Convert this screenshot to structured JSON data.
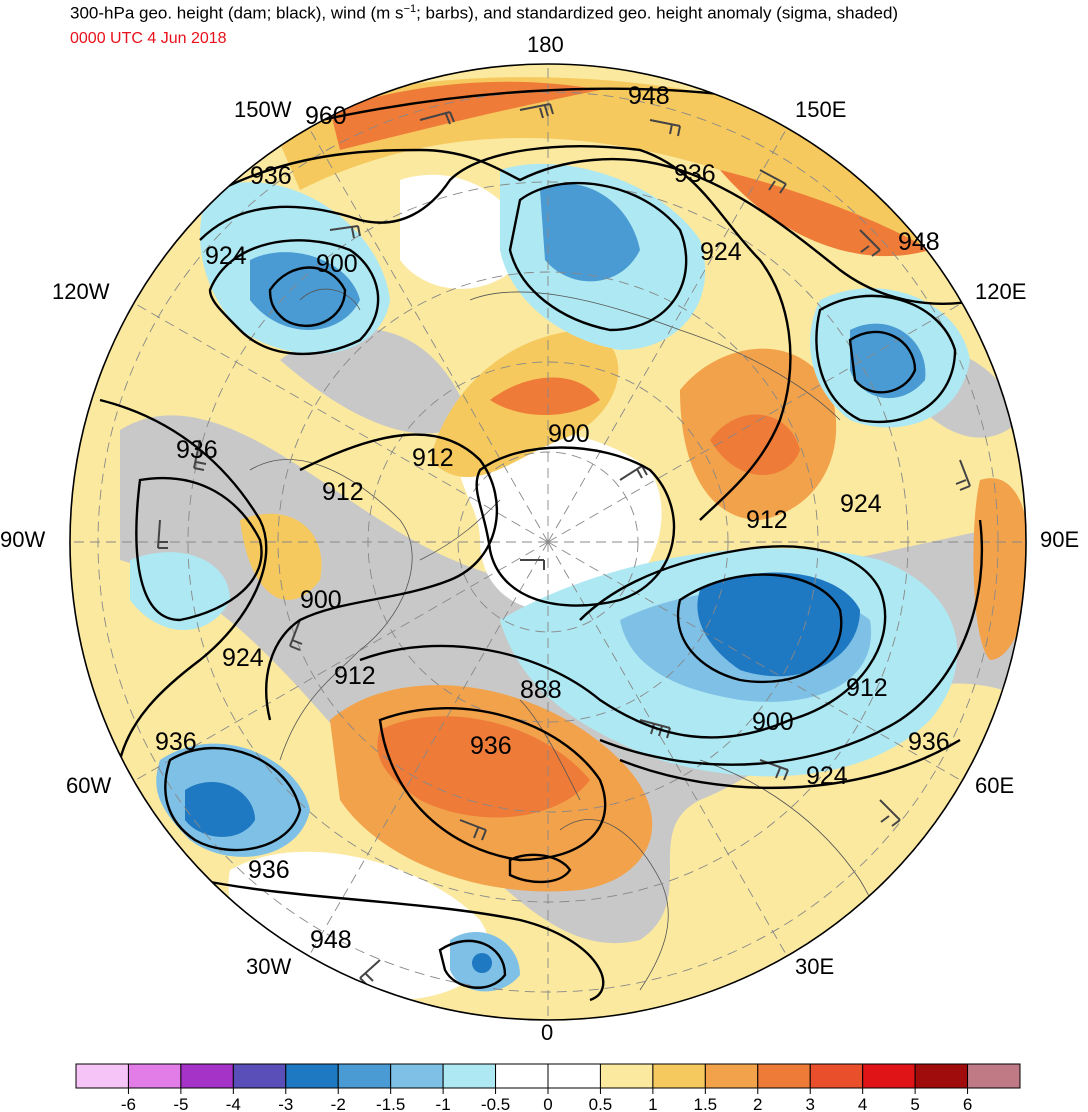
{
  "title": {
    "prefix": "300-hPa geo. height (dam; black), wind (m s",
    "exponent": "−1",
    "suffix": "; barbs), and standardized geo. height anomaly (sigma, shaded)"
  },
  "valid_time": "0000 UTC 4 Jun 2018",
  "longitude_labels": [
    "180",
    "150E",
    "120E",
    "90E",
    "60E",
    "30E",
    "0",
    "30W",
    "60W",
    "90W",
    "120W",
    "150W"
  ],
  "contour_labels": [
    "960",
    "948",
    "936",
    "948",
    "924",
    "936",
    "900",
    "924",
    "936",
    "912",
    "912",
    "900",
    "900",
    "912",
    "924",
    "888",
    "912",
    "900",
    "936",
    "924",
    "936",
    "936",
    "924",
    "912",
    "936",
    "948"
  ],
  "colorbar": {
    "colors": [
      "#f6c4f6",
      "#e27de8",
      "#a633c8",
      "#5a4fb8",
      "#1f78c2",
      "#4a9bd3",
      "#7fc0e6",
      "#aee8f2",
      "#ffffff",
      "#ffffff",
      "#fbe9a0",
      "#f6c95e",
      "#f2a24a",
      "#ee7b38",
      "#ea4f2c",
      "#e01417",
      "#a00b0b",
      "#c07a86"
    ],
    "labels": [
      "-6",
      "-5",
      "-4",
      "-3",
      "-2",
      "-1.5",
      "-1",
      "-0.5",
      "0",
      "0.5",
      "1",
      "1.5",
      "2",
      "3",
      "4",
      "5",
      "6"
    ]
  },
  "colors": {
    "gray_shade": "#c8c8c8",
    "land_outline": "#555555",
    "contour": "#000000",
    "barb": "#444444",
    "time_text": "#e8101a"
  }
}
